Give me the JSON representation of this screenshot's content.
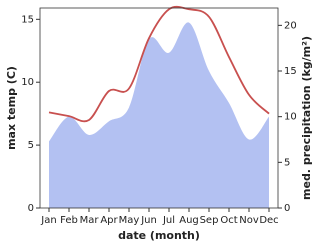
{
  "chart_data": {
    "type": "line-area",
    "categories": [
      "Jan",
      "Feb",
      "Mar",
      "Apr",
      "May",
      "Jun",
      "Jul",
      "Aug",
      "Sep",
      "Oct",
      "Nov",
      "Dec"
    ],
    "x_label": "date (month)",
    "y_label": "max temp (C)",
    "y2_label": "med. precipitation (kg/m²)",
    "ylim": [
      0,
      15.9
    ],
    "yticks": [
      0,
      5,
      10,
      15
    ],
    "y2lim": [
      0,
      21.9
    ],
    "y2ticks": [
      0,
      5,
      10,
      15,
      20
    ],
    "series": [
      {
        "type": "area",
        "axis": "y2",
        "color": "#b3c1f2",
        "values": [
          7.3,
          10.0,
          8.0,
          9.5,
          11.0,
          18.5,
          17.0,
          20.3,
          15.0,
          11.5,
          7.5,
          10.0
        ]
      },
      {
        "type": "line",
        "axis": "y",
        "color": "#c8504f",
        "values": [
          7.6,
          7.3,
          7.0,
          9.3,
          9.5,
          13.5,
          15.8,
          15.8,
          15.2,
          12.0,
          9.0,
          7.5
        ]
      }
    ]
  }
}
